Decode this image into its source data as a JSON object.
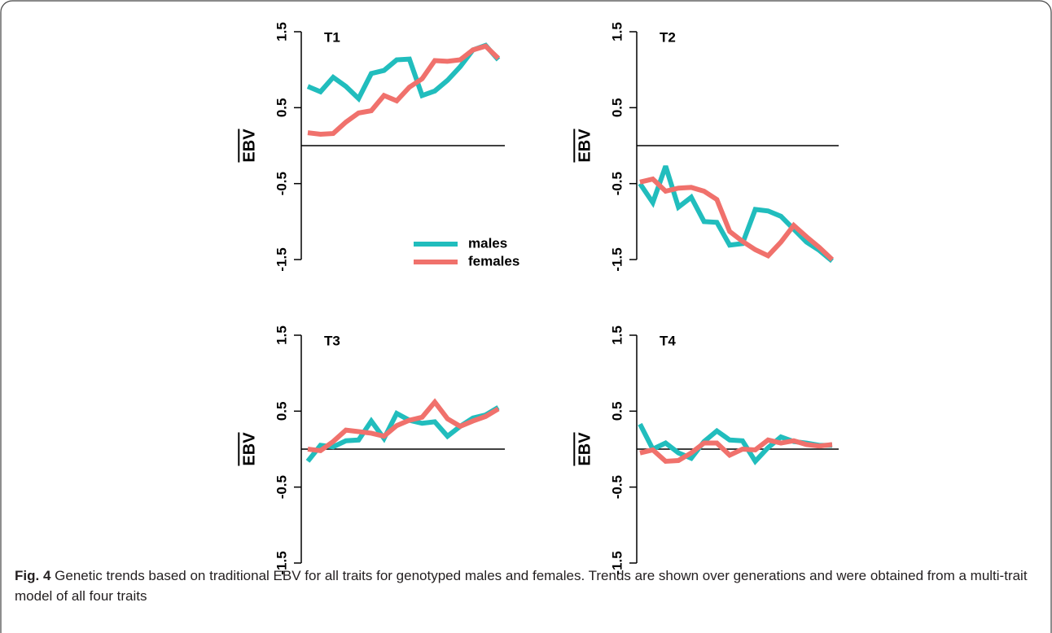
{
  "chart_data": [
    {
      "type": "line",
      "title": "T1",
      "ylabel": "EBV",
      "ylim": [
        -1.5,
        1.5
      ],
      "yticks": [
        -1.5,
        -0.5,
        0.5,
        1.5
      ],
      "xlim": [
        1,
        16
      ],
      "hline": 0,
      "legend": "bottom-right",
      "x": [
        1,
        2,
        3,
        4,
        5,
        6,
        7,
        8,
        9,
        10,
        11,
        12,
        13,
        14,
        15,
        16
      ],
      "series": [
        {
          "name": "males",
          "color": "#21bdbd",
          "values": [
            0.78,
            0.71,
            0.9,
            0.78,
            0.62,
            0.95,
            0.99,
            1.13,
            1.14,
            0.66,
            0.72,
            0.86,
            1.04,
            1.26,
            1.32,
            1.13
          ]
        },
        {
          "name": "females",
          "color": "#f0716c",
          "values": [
            0.17,
            0.15,
            0.16,
            0.31,
            0.43,
            0.46,
            0.66,
            0.59,
            0.77,
            0.88,
            1.12,
            1.11,
            1.13,
            1.26,
            1.31,
            1.15
          ]
        }
      ]
    },
    {
      "type": "line",
      "title": "T2",
      "ylabel": "EBV",
      "ylim": [
        -1.5,
        1.5
      ],
      "yticks": [
        -1.5,
        -0.5,
        0.5,
        1.5
      ],
      "xlim": [
        1,
        16
      ],
      "hline": 0,
      "x": [
        1,
        2,
        3,
        4,
        5,
        6,
        7,
        8,
        9,
        10,
        11,
        12,
        13,
        14,
        15,
        16
      ],
      "series": [
        {
          "color": "#21bdbd",
          "values": [
            -0.5,
            -0.75,
            -0.27,
            -0.81,
            -0.68,
            -1.0,
            -1.01,
            -1.31,
            -1.29,
            -0.84,
            -0.86,
            -0.93,
            -1.1,
            -1.27,
            -1.38,
            -1.52
          ]
        },
        {
          "color": "#f0716c",
          "values": [
            -0.48,
            -0.44,
            -0.6,
            -0.56,
            -0.55,
            -0.6,
            -0.71,
            -1.13,
            -1.26,
            -1.37,
            -1.45,
            -1.27,
            -1.05,
            -1.2,
            -1.34,
            -1.5
          ]
        }
      ]
    },
    {
      "type": "line",
      "title": "T3",
      "ylabel": "EBV",
      "ylim": [
        -1.5,
        1.5
      ],
      "yticks": [
        -1.5,
        -0.5,
        0.5,
        1.5
      ],
      "xlim": [
        1,
        16
      ],
      "hline": 0,
      "x": [
        1,
        2,
        3,
        4,
        5,
        6,
        7,
        8,
        9,
        10,
        11,
        12,
        13,
        14,
        15,
        16
      ],
      "series": [
        {
          "color": "#21bdbd",
          "values": [
            -0.16,
            0.05,
            0.03,
            0.11,
            0.12,
            0.37,
            0.14,
            0.47,
            0.38,
            0.34,
            0.36,
            0.17,
            0.3,
            0.41,
            0.45,
            0.55
          ]
        },
        {
          "color": "#f0716c",
          "values": [
            0,
            -0.02,
            0.1,
            0.25,
            0.23,
            0.21,
            0.17,
            0.31,
            0.38,
            0.42,
            0.62,
            0.4,
            0.3,
            0.37,
            0.43,
            0.53
          ]
        }
      ]
    },
    {
      "type": "line",
      "title": "T4",
      "ylabel": "EBV",
      "ylim": [
        -1.5,
        1.5
      ],
      "yticks": [
        -1.5,
        -0.5,
        0.5,
        1.5
      ],
      "xlim": [
        1,
        16
      ],
      "hline": 0,
      "x": [
        1,
        2,
        3,
        4,
        5,
        6,
        7,
        8,
        9,
        10,
        11,
        12,
        13,
        14,
        15,
        16
      ],
      "series": [
        {
          "color": "#21bdbd",
          "values": [
            0.33,
            0,
            0.08,
            -0.05,
            -0.12,
            0.1,
            0.24,
            0.12,
            0.11,
            -0.16,
            0.02,
            0.16,
            0.1,
            0.08,
            0.05,
            0.05
          ]
        },
        {
          "color": "#f0716c",
          "values": [
            -0.05,
            -0.01,
            -0.16,
            -0.15,
            -0.05,
            0.08,
            0.08,
            -0.08,
            0,
            -0.01,
            0.12,
            0.08,
            0.11,
            0.06,
            0.04,
            0.06
          ]
        }
      ]
    }
  ],
  "caption": {
    "label": "Fig. 4",
    "text": "Genetic trends based on traditional EBV for all traits for genotyped males and females. Trends are shown over generations and were obtained from a multi-trait model of all four traits"
  }
}
